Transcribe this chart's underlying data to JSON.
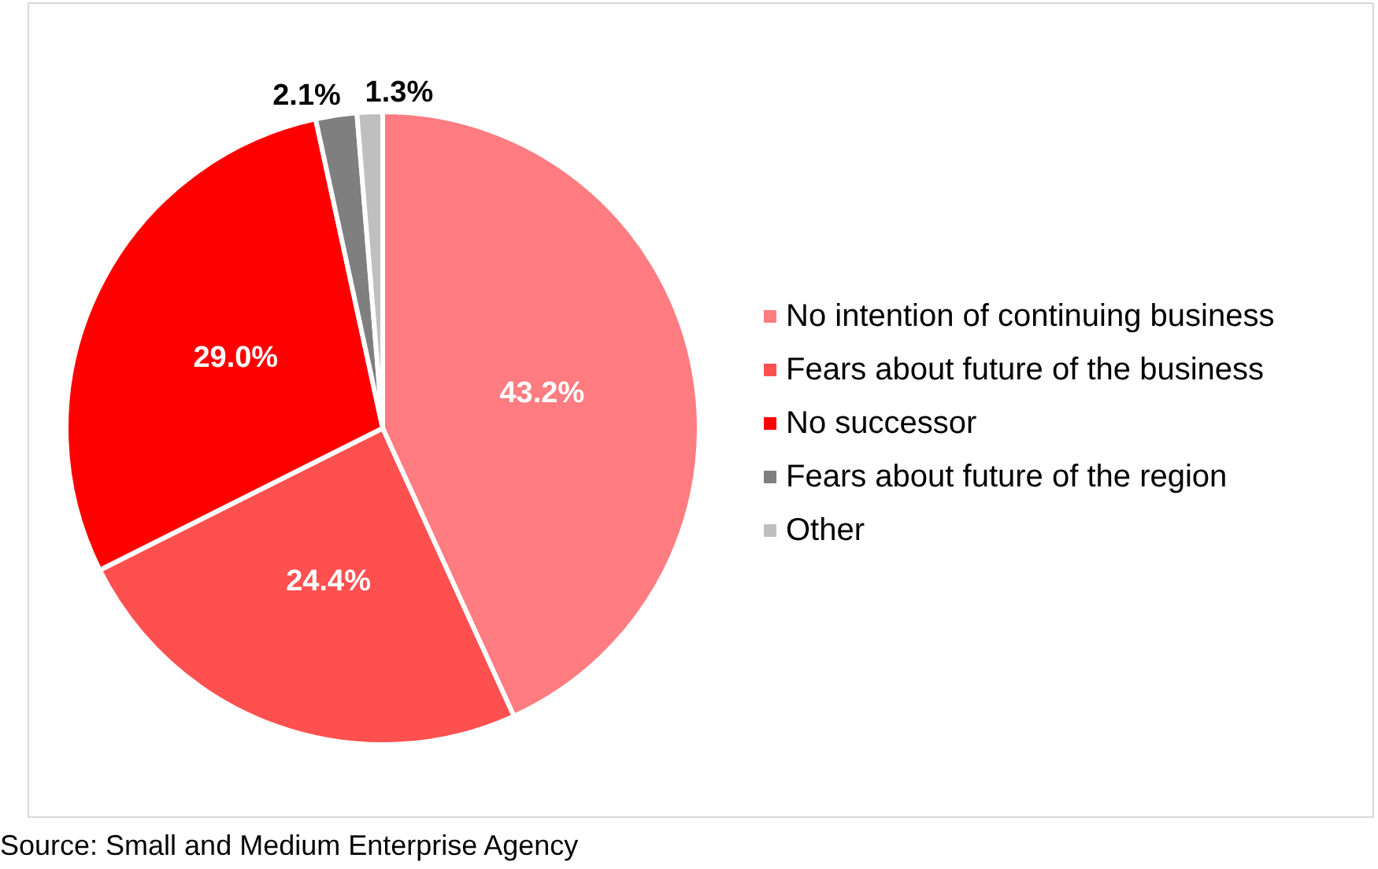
{
  "chart_data": {
    "type": "pie",
    "categories": [
      "No intention of continuing business",
      "Fears about future of the business",
      "No successor",
      "Fears about future of the region",
      "Other"
    ],
    "values": [
      43.2,
      24.4,
      29.0,
      2.1,
      1.3
    ],
    "colors": [
      "#ff7c80",
      "#ff5050",
      "#ff0000",
      "#7f7f7f",
      "#bfbfbf"
    ],
    "value_labels": [
      "43.2%",
      "24.4%",
      "29.0%",
      "2.1%",
      "1.3%"
    ],
    "legend": "right",
    "annotations": [
      "Source: Small and Medium Enterprise Agency"
    ]
  }
}
